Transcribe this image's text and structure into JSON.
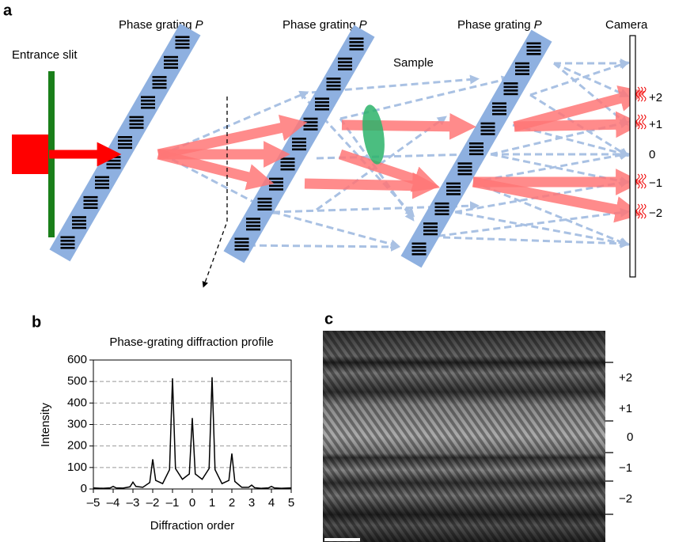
{
  "panel_a": {
    "label": "a",
    "entrance_slit": "Entrance slit",
    "gratings": [
      {
        "text": "Phase grating",
        "symbol": "P"
      },
      {
        "text": "Phase grating",
        "symbol": "P"
      },
      {
        "text": "Phase grating",
        "symbol": "P"
      }
    ],
    "sample": "Sample",
    "camera": "Camera",
    "orders": [
      "+2",
      "+1",
      "0",
      "−1",
      "−2"
    ]
  },
  "panel_b": {
    "label": "b"
  },
  "chart_data": {
    "type": "line",
    "title": "Phase-grating diffraction profile",
    "x_label": "Diffraction order",
    "y_label": "Intensity",
    "x": [
      -5,
      -4.5,
      -4.15,
      -4,
      -3.85,
      -3.5,
      -3.15,
      -3,
      -2.85,
      -2.5,
      -2.15,
      -2,
      -1.85,
      -1.5,
      -1.15,
      -1,
      -0.85,
      -0.5,
      -0.15,
      0,
      0.15,
      0.5,
      0.85,
      1,
      1.15,
      1.5,
      1.85,
      2,
      2.15,
      2.5,
      2.85,
      3,
      3.15,
      3.5,
      3.85,
      4,
      4.15,
      4.5,
      5
    ],
    "values": [
      5,
      3,
      5,
      12,
      5,
      4,
      10,
      32,
      12,
      8,
      30,
      138,
      40,
      25,
      90,
      515,
      95,
      45,
      70,
      330,
      70,
      45,
      95,
      520,
      90,
      25,
      40,
      165,
      35,
      8,
      8,
      18,
      6,
      3,
      5,
      12,
      5,
      3,
      5
    ],
    "color": "#000000",
    "xlim": [
      -5,
      5
    ],
    "ylim": [
      0,
      600
    ],
    "xticks": [
      {
        "value": -5,
        "label": "–5"
      },
      {
        "value": -4,
        "label": "–4"
      },
      {
        "value": -3,
        "label": "–3"
      },
      {
        "value": -2,
        "label": "–2"
      },
      {
        "value": -1,
        "label": "–1"
      },
      0,
      1,
      2,
      3,
      4,
      5
    ],
    "yticks": [
      0,
      100,
      200,
      300,
      400,
      500,
      600
    ],
    "grid": true
  },
  "panel_c": {
    "label": "c",
    "orders": [
      "+2",
      "+1",
      "0",
      "−1",
      "−2"
    ]
  }
}
